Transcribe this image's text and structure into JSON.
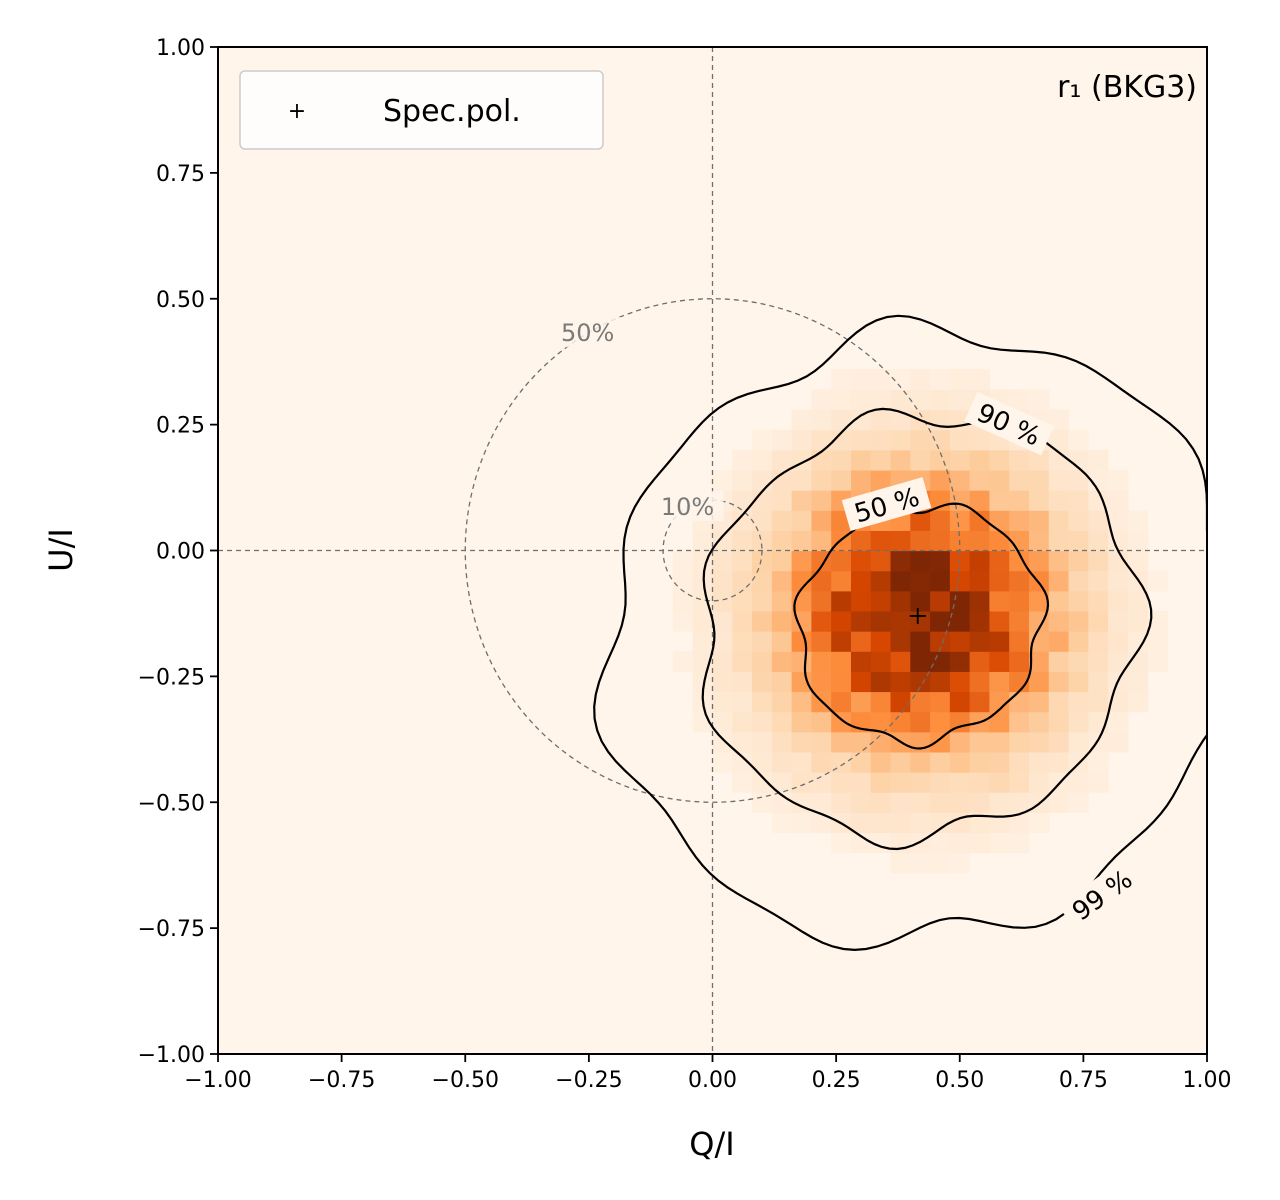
{
  "chart_data": {
    "type": "heatmap",
    "title": "",
    "annotation": "r₁ (BKG3)",
    "xlabel": "Q/I",
    "ylabel": "U/I",
    "xlim": [
      -1.0,
      1.0
    ],
    "ylim": [
      -1.0,
      1.0
    ],
    "xticks": [
      -1.0,
      -0.75,
      -0.5,
      -0.25,
      0.0,
      0.25,
      0.5,
      0.75,
      1.0
    ],
    "yticks": [
      -1.0,
      -0.75,
      -0.5,
      -0.25,
      0.0,
      0.25,
      0.5,
      0.75,
      1.0
    ],
    "xtick_labels": [
      "−1.00",
      "−0.75",
      "−0.50",
      "−0.25",
      "0.00",
      "0.25",
      "0.50",
      "0.75",
      "1.00"
    ],
    "ytick_labels": [
      "−1.00",
      "−0.75",
      "−0.50",
      "−0.25",
      "0.00",
      "0.25",
      "0.50",
      "0.75",
      "1.00"
    ],
    "colormap": "Oranges",
    "density_peak": {
      "q": 0.42,
      "u": -0.13,
      "sigma": 0.19
    },
    "spec_pol_point": {
      "q": 0.415,
      "u": -0.13
    },
    "legend": {
      "location": "upper-left",
      "entries": [
        {
          "marker": "+",
          "label": "Spec.pol."
        }
      ]
    },
    "mdp_circles": [
      {
        "radius": 0.1,
        "label": "10%"
      },
      {
        "radius": 0.5,
        "label": "50%"
      }
    ],
    "contours": [
      {
        "level": "50 %",
        "label": "50 %",
        "center": [
          0.42,
          -0.145
        ],
        "radius": 0.24
      },
      {
        "level": "90 %",
        "label": "90 %",
        "center": [
          0.42,
          -0.15
        ],
        "radius": 0.43
      },
      {
        "level": "99 %",
        "label": "99 %",
        "center": [
          0.42,
          -0.17
        ],
        "radius": 0.62
      }
    ],
    "reference_lines": [
      {
        "axis": "x",
        "value": 0.0
      },
      {
        "axis": "y",
        "value": 0.0
      }
    ]
  },
  "colors": {
    "background": "#fff5eb",
    "contour": "#000000",
    "reference": "#6e6e6e"
  }
}
